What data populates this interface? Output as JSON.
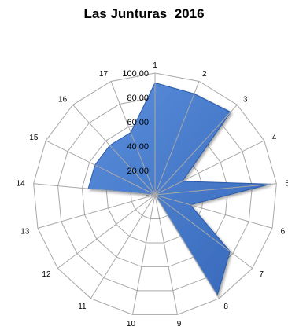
{
  "chart_data": {
    "type": "radar",
    "title": "Las Junturas  2016",
    "categories": [
      "1",
      "2",
      "3",
      "4",
      "5",
      "6",
      "7",
      "8",
      "9",
      "10",
      "11",
      "12",
      "13",
      "14",
      "15",
      "16",
      "17"
    ],
    "series": [
      {
        "values": [
          92,
          89,
          92,
          25,
          95,
          30,
          77,
          97,
          0,
          0,
          0,
          0,
          0,
          55,
          55,
          55,
          55
        ]
      }
    ],
    "rlim": [
      0,
      100
    ],
    "rticks": [
      "-",
      "20,00",
      "40,00",
      "60,00",
      "80,00",
      "100,00"
    ],
    "grid": true,
    "legend": "none",
    "colors": {
      "fill": "#4a7fd0",
      "fill_dark": "#2a5aa8",
      "grid": "#a8a8a8",
      "text": "#000000"
    }
  }
}
